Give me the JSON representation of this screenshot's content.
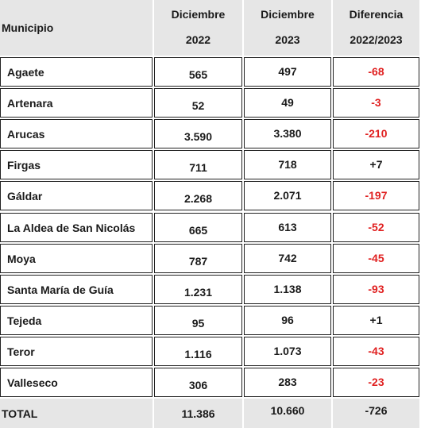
{
  "header": {
    "municipio": "Municipio",
    "col1_line1": "Diciembre",
    "col1_line2": "2022",
    "col2_line1": "Diciembre",
    "col2_line2": "2023",
    "col3_line1": "Diferencia",
    "col3_line2": "2022/2023"
  },
  "rows": [
    {
      "municipio": "Agaete",
      "d2022": "565",
      "d2023": "497",
      "diff": "-68",
      "sign": "neg"
    },
    {
      "municipio": "Artenara",
      "d2022": "52",
      "d2023": "49",
      "diff": "-3",
      "sign": "neg"
    },
    {
      "municipio": "Arucas",
      "d2022": "3.590",
      "d2023": "3.380",
      "diff": "-210",
      "sign": "neg"
    },
    {
      "municipio": "Firgas",
      "d2022": "711",
      "d2023": "718",
      "diff": "+7",
      "sign": "pos"
    },
    {
      "municipio": "Gáldar",
      "d2022": "2.268",
      "d2023": "2.071",
      "diff": "-197",
      "sign": "neg"
    },
    {
      "municipio": "La Aldea de San Nicolás",
      "d2022": "665",
      "d2023": "613",
      "diff": "-52",
      "sign": "neg"
    },
    {
      "municipio": "Moya",
      "d2022": "787",
      "d2023": "742",
      "diff": "-45",
      "sign": "neg"
    },
    {
      "municipio": "Santa María de Guía",
      "d2022": "1.231",
      "d2023": "1.138",
      "diff": "-93",
      "sign": "neg"
    },
    {
      "municipio": "Tejeda",
      "d2022": "95",
      "d2023": "96",
      "diff": "+1",
      "sign": "pos"
    },
    {
      "municipio": "Teror",
      "d2022": "1.116",
      "d2023": "1.073",
      "diff": "-43",
      "sign": "neg"
    },
    {
      "municipio": "Valleseco",
      "d2022": "306",
      "d2023": "283",
      "diff": "-23",
      "sign": "neg"
    }
  ],
  "total": {
    "label": "TOTAL",
    "d2022": "11.386",
    "d2023": "10.660",
    "diff": "-726"
  },
  "colors": {
    "negative": "#e02020",
    "header_bg": "#e6e6e6",
    "border": "#222222"
  }
}
